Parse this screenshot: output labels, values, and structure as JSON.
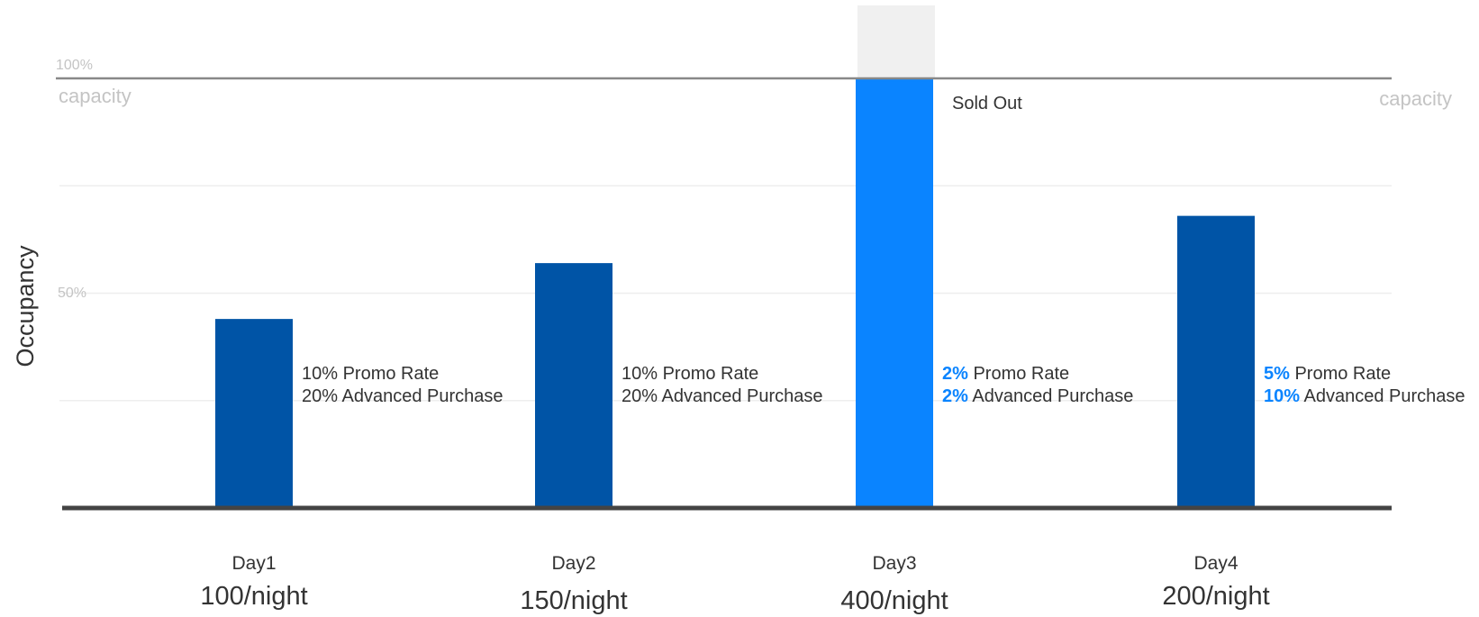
{
  "chart_data": {
    "type": "bar",
    "ylabel": "Occupancy",
    "ylim": [
      0,
      100
    ],
    "y_tick_labels": [
      "100%",
      "50%"
    ],
    "capacity_label": "capacity",
    "categories": [
      "Day1",
      "Day2",
      "Day3",
      "Day4"
    ],
    "rates": [
      "100/night",
      "150/night",
      "400/night",
      "200/night"
    ],
    "values": [
      44,
      57,
      100,
      68
    ],
    "sold_out_label": "Sold Out",
    "annotations": [
      {
        "promo_value": "10%",
        "promo_label": "Promo Rate",
        "adv_value": "20%",
        "adv_label": "Advanced Purchase",
        "highlight": false
      },
      {
        "promo_value": "10%",
        "promo_label": "Promo Rate",
        "adv_value": "20%",
        "adv_label": "Advanced Purchase",
        "highlight": false
      },
      {
        "promo_value": "2%",
        "promo_label": "Promo Rate",
        "adv_value": "2%",
        "adv_label": "Advanced Purchase",
        "highlight": true
      },
      {
        "promo_value": "5%",
        "promo_label": "Promo Rate",
        "adv_value": "10%",
        "adv_label": "Advanced Purchase",
        "highlight": true
      }
    ],
    "grid": true,
    "colors": {
      "bar": "#0054a6",
      "bar_sold_out": "#0a84ff",
      "overflow": "#f0f0f0",
      "highlight_text": "#0a84ff",
      "text": "#333333",
      "muted": "#c4c4c4",
      "axis": "#444444",
      "capacity_line": "#888888",
      "grid": "#eeeeee"
    }
  }
}
